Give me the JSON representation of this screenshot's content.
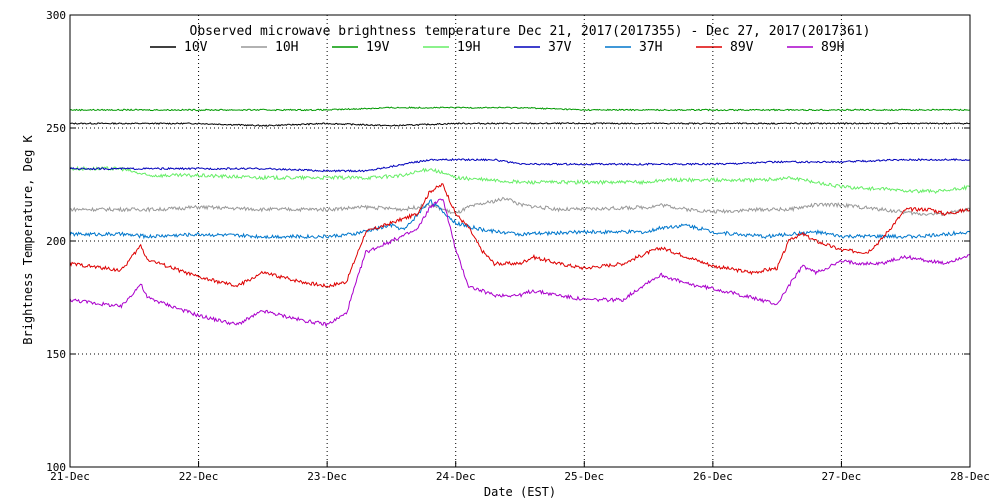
{
  "chart_data": {
    "type": "line",
    "title": "Observed microwave brightness temperature Dec 21, 2017(2017355) - Dec 27, 2017(2017361)",
    "xlabel": "Date (EST)",
    "ylabel": "Brightness Temperature, Deg K",
    "ylim": [
      100,
      300
    ],
    "xlim": [
      0,
      7
    ],
    "yticks": [
      100,
      150,
      200,
      250,
      300
    ],
    "yticks_labels": [
      "100",
      "150",
      "200",
      "250",
      "300"
    ],
    "xticks_labels": [
      "21-Dec",
      "22-Dec",
      "23-Dec",
      "24-Dec",
      "25-Dec",
      "26-Dec",
      "27-Dec",
      "28-Dec"
    ],
    "grid": "dotted",
    "legend": "top",
    "series": [
      {
        "name": "10V",
        "color": "#000000",
        "x": [
          0,
          0.5,
          1,
          1.5,
          2,
          2.5,
          3,
          3.5,
          4,
          4.5,
          5,
          5.5,
          6,
          6.5,
          7
        ],
        "y": [
          252,
          252,
          252,
          251,
          252,
          251,
          252,
          252,
          252,
          252,
          252,
          252,
          252,
          252,
          252
        ]
      },
      {
        "name": "10H",
        "color": "#999999",
        "x": [
          0,
          0.4,
          0.55,
          0.7,
          1,
          1.5,
          2,
          2.3,
          2.6,
          2.8,
          3.0,
          3.1,
          3.4,
          3.5,
          3.8,
          4,
          4.5,
          4.6,
          4.8,
          5,
          5.4,
          5.6,
          5.8,
          6,
          6.3,
          6.6,
          6.8,
          7
        ],
        "y": [
          214,
          214,
          214,
          214,
          215,
          214,
          214,
          215,
          214,
          216,
          212,
          215,
          219,
          216,
          214,
          214,
          215,
          216,
          214,
          213,
          214,
          214,
          216,
          216,
          214,
          212,
          212,
          214
        ]
      },
      {
        "name": "19V",
        "color": "#009900",
        "x": [
          0,
          0.5,
          1,
          1.5,
          2,
          2.5,
          3,
          3.5,
          4,
          4.5,
          5,
          5.5,
          6,
          6.5,
          7
        ],
        "y": [
          258,
          258,
          258,
          258,
          258,
          259,
          259,
          259,
          258,
          258,
          258,
          258,
          258,
          258,
          258
        ]
      },
      {
        "name": "19H",
        "color": "#66ee66",
        "x": [
          0,
          0.4,
          0.6,
          1,
          1.5,
          2,
          2.3,
          2.6,
          2.8,
          3.0,
          3.5,
          4,
          4.5,
          4.6,
          4.8,
          5,
          5.4,
          5.6,
          5.8,
          6,
          6.3,
          6.6,
          6.8,
          7
        ],
        "y": [
          232,
          232,
          229,
          229,
          228,
          228,
          228,
          229,
          232,
          228,
          226,
          226,
          226,
          227,
          227,
          227,
          227,
          228,
          226,
          224,
          223,
          222,
          222,
          224
        ]
      },
      {
        "name": "37V",
        "color": "#0000bb",
        "x": [
          0,
          0.5,
          1,
          1.5,
          2,
          2.3,
          2.6,
          2.8,
          3,
          3.3,
          3.5,
          4,
          4.5,
          5,
          5.5,
          6,
          6.5,
          7
        ],
        "y": [
          232,
          232,
          232,
          232,
          231,
          231,
          234,
          236,
          236,
          236,
          234,
          234,
          234,
          234,
          235,
          235,
          236,
          236
        ]
      },
      {
        "name": "37H",
        "color": "#0077cc",
        "x": [
          0,
          0.4,
          0.6,
          1,
          1.5,
          2,
          2.2,
          2.5,
          2.6,
          2.8,
          3,
          3.2,
          3.5,
          4,
          4.5,
          4.6,
          4.8,
          5,
          5.4,
          5.6,
          5.8,
          6,
          6.3,
          6.6,
          6.8,
          7
        ],
        "y": [
          203,
          203,
          202,
          203,
          202,
          202,
          203,
          207,
          205,
          218,
          208,
          205,
          203,
          204,
          204,
          206,
          207,
          204,
          202,
          203,
          204,
          202,
          202,
          202,
          203,
          204
        ]
      },
      {
        "name": "89V",
        "color": "#dd0000",
        "x": [
          0,
          0.4,
          0.55,
          0.6,
          1,
          1.3,
          1.5,
          1.8,
          2,
          2.15,
          2.3,
          2.5,
          2.7,
          2.8,
          2.9,
          3.0,
          3.1,
          3.2,
          3.3,
          3.5,
          3.6,
          3.8,
          4,
          4.3,
          4.5,
          4.6,
          4.8,
          5,
          5.3,
          5.5,
          5.6,
          5.7,
          5.8,
          6,
          6.2,
          6.3,
          6.5,
          6.7,
          6.8,
          7
        ],
        "y": [
          190,
          187,
          198,
          192,
          184,
          180,
          186,
          182,
          180,
          182,
          204,
          208,
          212,
          222,
          225,
          212,
          206,
          196,
          190,
          190,
          193,
          190,
          188,
          190,
          195,
          197,
          193,
          189,
          186,
          188,
          201,
          203,
          200,
          196,
          195,
          200,
          214,
          214,
          212,
          214
        ]
      },
      {
        "name": "89H",
        "color": "#aa00cc",
        "x": [
          0,
          0.4,
          0.55,
          0.6,
          1,
          1.3,
          1.5,
          1.8,
          2,
          2.15,
          2.3,
          2.5,
          2.7,
          2.8,
          2.9,
          3.0,
          3.1,
          3.2,
          3.3,
          3.5,
          3.6,
          3.8,
          4,
          4.3,
          4.5,
          4.6,
          4.8,
          5,
          5.3,
          5.5,
          5.6,
          5.7,
          5.8,
          6,
          6.2,
          6.3,
          6.5,
          6.7,
          6.8,
          7
        ],
        "y": [
          174,
          171,
          181,
          175,
          167,
          163,
          169,
          165,
          163,
          168,
          195,
          200,
          205,
          215,
          219,
          196,
          180,
          178,
          176,
          176,
          178,
          176,
          174,
          174,
          182,
          185,
          181,
          179,
          175,
          172,
          181,
          189,
          186,
          191,
          190,
          190,
          193,
          191,
          190,
          194
        ]
      }
    ]
  }
}
